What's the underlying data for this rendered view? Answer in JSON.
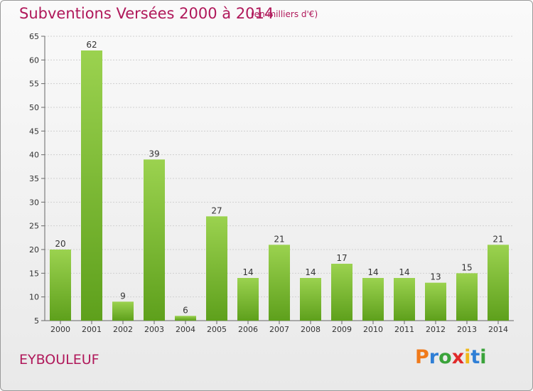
{
  "header": {
    "title": "Subventions Versées 2000 à 2014",
    "unit": "(en milliers d'€)"
  },
  "footer": {
    "commune": "EYBOULEUF",
    "logo_letters": [
      {
        "char": "P",
        "color": "#f07a1a"
      },
      {
        "char": "r",
        "color": "#2f7fd6"
      },
      {
        "char": "o",
        "color": "#3aa33a"
      },
      {
        "char": "x",
        "color": "#e02a2a"
      },
      {
        "char": "i",
        "color": "#f0b81a"
      },
      {
        "char": "t",
        "color": "#2f7fd6"
      },
      {
        "char": "i",
        "color": "#3aa33a"
      }
    ]
  },
  "colors": {
    "title": "#b0185a",
    "bar_top": "#9bd24f",
    "bar_bottom": "#5ea01c",
    "grid": "#d0d0d0"
  },
  "chart_data": {
    "type": "bar",
    "title": "Subventions Versées 2000 à 2014",
    "subtitle": "(en milliers d'€)",
    "categories": [
      "2000",
      "2001",
      "2002",
      "2003",
      "2004",
      "2005",
      "2006",
      "2007",
      "2008",
      "2009",
      "2010",
      "2011",
      "2012",
      "2013",
      "2014"
    ],
    "values": [
      20,
      62,
      9,
      39,
      6,
      27,
      14,
      21,
      14,
      17,
      14,
      14,
      13,
      15,
      21
    ],
    "ylim": [
      5,
      65
    ],
    "yticks": [
      5,
      10,
      15,
      20,
      25,
      30,
      35,
      40,
      45,
      50,
      55,
      60,
      65
    ],
    "grid": true,
    "legend": "none"
  }
}
